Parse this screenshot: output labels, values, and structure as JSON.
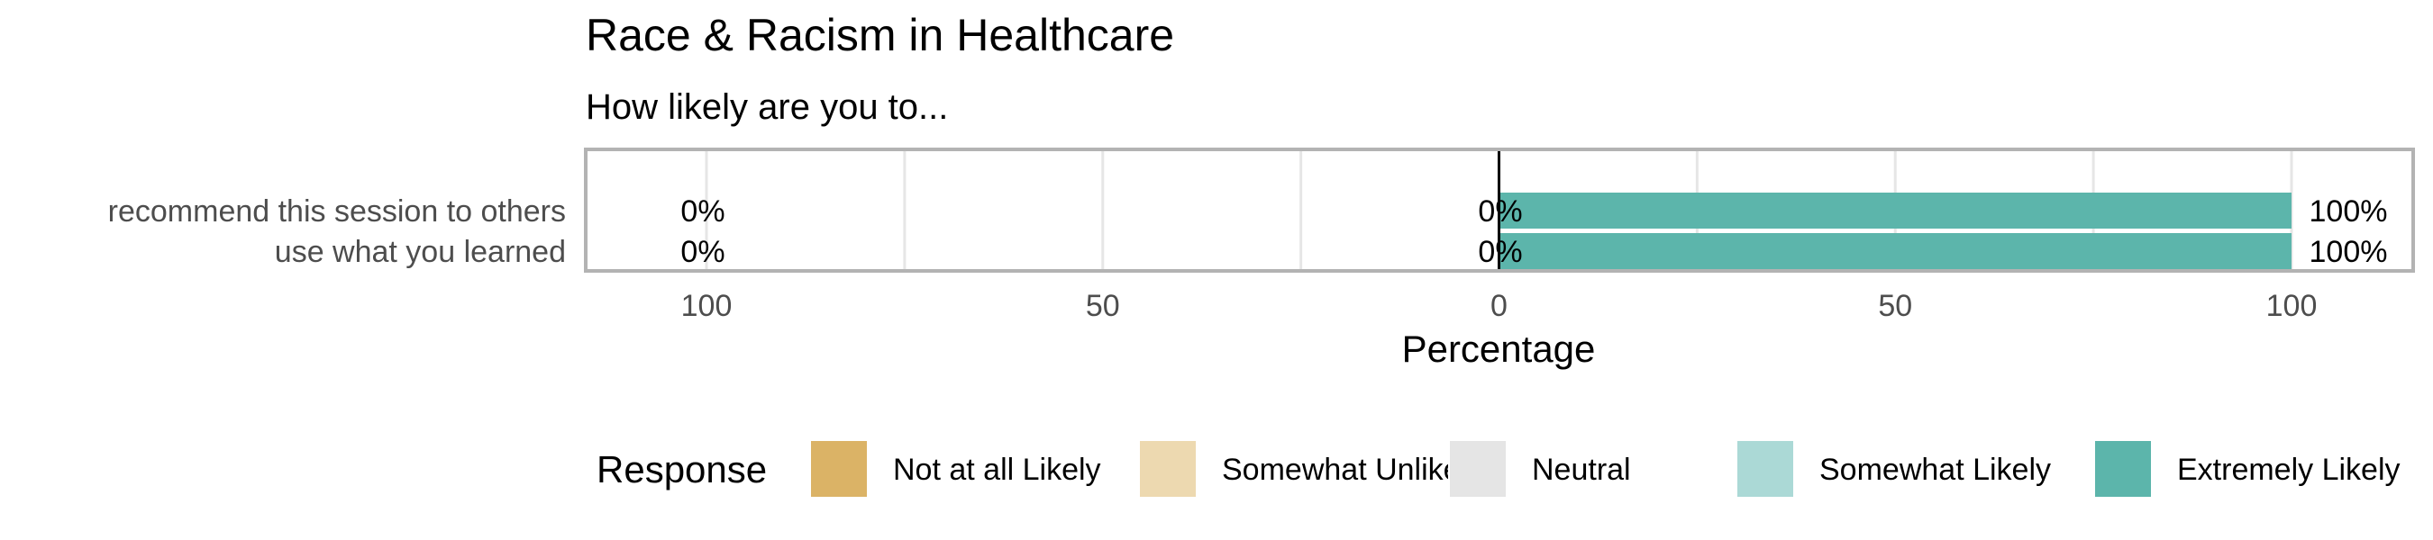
{
  "chart_data": {
    "type": "bar",
    "orientation": "horizontal",
    "stacking": "diverging",
    "title": "Race & Racism in Healthcare",
    "subtitle": "How likely are you to...",
    "xlabel": "Percentage",
    "ylabel": "",
    "xlim": [
      -100,
      100
    ],
    "x_ticks": [
      -100,
      -50,
      0,
      50,
      100
    ],
    "x_tick_labels": [
      "100",
      "50",
      "0",
      "50",
      "100"
    ],
    "grid": true,
    "categories": [
      "recommend this session to others",
      "use what you learned"
    ],
    "series": [
      {
        "name": "Not at all Likely",
        "color": "#DBB366",
        "values": [
          0,
          0
        ]
      },
      {
        "name": "Somewhat Unlikely",
        "color": "#EDD9B0",
        "values": [
          0,
          0
        ]
      },
      {
        "name": "Neutral",
        "color": "#E5E5E5",
        "values": [
          0,
          0
        ]
      },
      {
        "name": "Somewhat Likely",
        "color": "#ABD9D6",
        "values": [
          0,
          0
        ]
      },
      {
        "name": "Extremely Likely",
        "color": "#5CB5AB",
        "values": [
          100,
          100
        ]
      }
    ],
    "summary_labels": {
      "negative": [
        "0%",
        "0%"
      ],
      "neutral": [
        "0%",
        "0%"
      ],
      "positive": [
        "100%",
        "100%"
      ]
    },
    "legend": {
      "title": "Response",
      "position": "bottom",
      "entries": [
        "Not at all Likely",
        "Somewhat Unlikely",
        "Neutral",
        "Somewhat Likely",
        "Extremely Likely"
      ]
    }
  }
}
